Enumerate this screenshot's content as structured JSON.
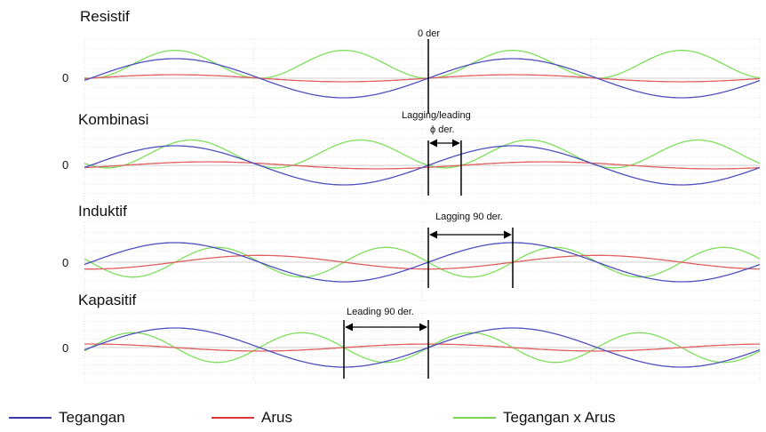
{
  "chart_data": {
    "type": "line",
    "panels": [
      {
        "title": "Resistif",
        "voltage_amp": 1.0,
        "current_amp": 0.18,
        "power_amp": 1.5,
        "current_phase_deg": 0,
        "annotation": "0 der"
      },
      {
        "title": "Kombinasi",
        "voltage_amp": 1.0,
        "current_amp": 0.18,
        "power_amp": 1.5,
        "current_phase_deg": -35,
        "annotation": "Lagging/leading",
        "annotation2": "ϕ der."
      },
      {
        "title": "Induktif",
        "voltage_amp": 1.0,
        "current_amp": 0.35,
        "power_amp": 1.6,
        "current_phase_deg": -90,
        "annotation": "Lagging 90 der."
      },
      {
        "title": "Kapasitif",
        "voltage_amp": 1.0,
        "current_amp": 0.18,
        "power_amp": 1.6,
        "current_phase_deg": 90,
        "annotation": "Leading 90 der."
      }
    ],
    "zero_label": "0",
    "x_cycles": 2,
    "grid": true
  },
  "legend": [
    {
      "label": "Tegangan",
      "color": "#3a3aa8"
    },
    {
      "label": "Arus",
      "color": "#d83a3a"
    },
    {
      "label": "Tegangan x Arus",
      "color": "#7ad650"
    }
  ],
  "colors": {
    "voltage": "#5050c0",
    "current": "#e06060",
    "power": "#7ee05a",
    "grid": "#c8c8c8"
  }
}
